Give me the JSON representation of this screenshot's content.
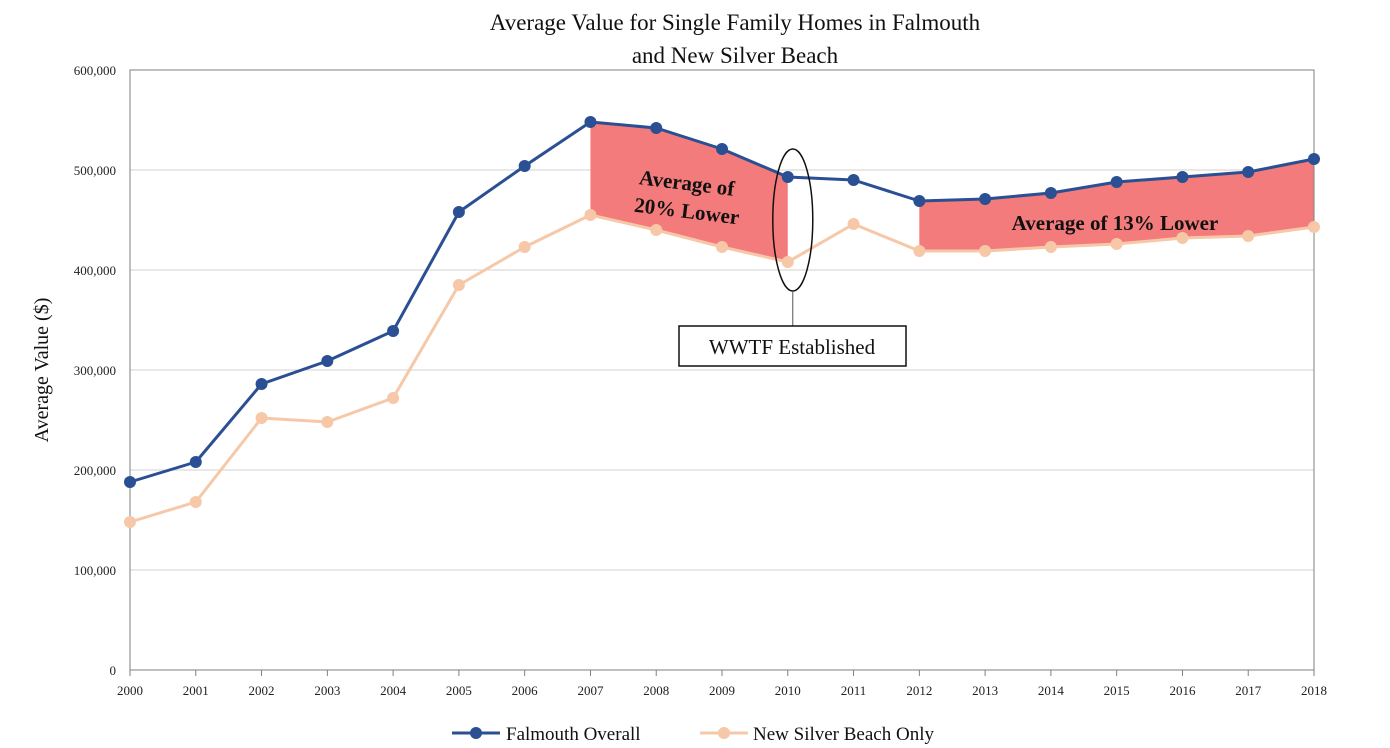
{
  "chart_data": {
    "type": "line",
    "title_lines": [
      "Average Value for Single Family Homes in Falmouth",
      "and New Silver Beach"
    ],
    "xlabel": "",
    "ylabel": "Average Value ($)",
    "x": [
      "2000",
      "2001",
      "2002",
      "2003",
      "2004",
      "2005",
      "2006",
      "2007",
      "2008",
      "2009",
      "2010",
      "2011",
      "2012",
      "2013",
      "2014",
      "2015",
      "2016",
      "2017",
      "2018"
    ],
    "ylim": [
      0,
      600000
    ],
    "y_ticks": [
      0,
      100000,
      200000,
      300000,
      400000,
      500000,
      600000
    ],
    "y_tick_labels": [
      "0",
      "100,000",
      "200,000",
      "300,000",
      "400,000",
      "500,000",
      "600,000"
    ],
    "grid": "horizontal",
    "legend_position": "bottom",
    "series": [
      {
        "name": "Falmouth Overall",
        "color": "#2b4f93",
        "values": [
          188000,
          208000,
          286000,
          309000,
          339000,
          458000,
          504000,
          548000,
          542000,
          521000,
          493000,
          490000,
          469000,
          471000,
          477000,
          488000,
          493000,
          498000,
          511000
        ]
      },
      {
        "name": "New Silver Beach Only",
        "color": "#f6c8a8",
        "values": [
          148000,
          168000,
          252000,
          248000,
          272000,
          385000,
          423000,
          455000,
          440000,
          423000,
          408000,
          446000,
          419000,
          419000,
          423000,
          426000,
          432000,
          434000,
          443000
        ]
      }
    ],
    "shaded_regions": [
      {
        "from": "2007",
        "to": "2010",
        "color": "#f47b7b"
      },
      {
        "from": "2012",
        "to": "2018",
        "color": "#f47b7b"
      }
    ],
    "annotations": [
      {
        "id": "ann1",
        "lines": [
          "Average of",
          "20% Lower"
        ]
      },
      {
        "id": "ann2",
        "lines": [
          "Average of 13% Lower"
        ]
      }
    ],
    "callout": {
      "text": "WWTF Established",
      "x": "2010"
    }
  }
}
